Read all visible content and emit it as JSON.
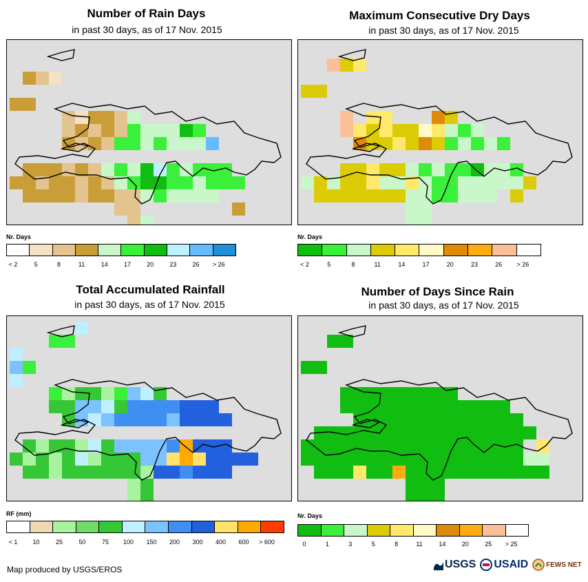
{
  "panels": [
    {
      "title": "Number of Rain Days",
      "subtitle": "in past 30 days, as of 17 Nov. 2015",
      "legend_title": "Nr. Days",
      "legend_colors": [
        "#ffffff",
        "#f5e2c4",
        "#e3c48f",
        "#c99e38",
        "#c9f7c9",
        "#3af03a",
        "#10bd10",
        "#bff0ff",
        "#66bbff",
        "#1f90d7"
      ],
      "legend_labels": [
        "< 2",
        "5",
        "8",
        "11",
        "14",
        "17",
        "20",
        "23",
        "26",
        "> 26"
      ]
    },
    {
      "title": "Maximum Consecutive Dry Days",
      "subtitle": "in past 30 days, as of 17 Nov. 2015",
      "legend_title": "Nr. Days",
      "legend_colors": [
        "#10bd10",
        "#3af03a",
        "#c9f7c9",
        "#dccb07",
        "#ffe96b",
        "#fffbc8",
        "#df8a08",
        "#ffac12",
        "#fbbf97",
        "#ffffff"
      ],
      "legend_labels": [
        "< 2",
        "5",
        "8",
        "11",
        "14",
        "17",
        "20",
        "23",
        "26",
        "> 26"
      ]
    },
    {
      "title": "Total Accumulated Rainfall",
      "subtitle": "in past 30 days, as of 17 Nov. 2015",
      "legend_title": "RF (mm)",
      "legend_colors": [
        "#ffffff",
        "#eed8b2",
        "#a8f2a0",
        "#6fdc6a",
        "#36c736",
        "#bff0ff",
        "#7cc2ff",
        "#3f8ef2",
        "#2360dd",
        "#ffe16b",
        "#ffaa00",
        "#ff3d00"
      ],
      "legend_labels": [
        "< 1",
        "10",
        "25",
        "50",
        "75",
        "100",
        "150",
        "200",
        "300",
        "400",
        "600",
        "> 600"
      ]
    },
    {
      "title": "Number of Days Since Rain",
      "subtitle": "in past 30 days, as of 17 Nov. 2015",
      "legend_title": "Nr. Days",
      "legend_colors": [
        "#10bd10",
        "#3af03a",
        "#c9f7c9",
        "#dccb07",
        "#ffe96b",
        "#fffbc8",
        "#df8a08",
        "#ffac12",
        "#fbbf97",
        "#ffffff"
      ],
      "legend_labels": [
        "0",
        "1",
        "3",
        "5",
        "8",
        "11",
        "14",
        "20",
        "25",
        "> 25"
      ]
    }
  ],
  "map_background": "#dedede",
  "footer": "Map produced by USGS/EROS",
  "logos": [
    "USGS",
    "USAID",
    "FEWS NET"
  ]
}
